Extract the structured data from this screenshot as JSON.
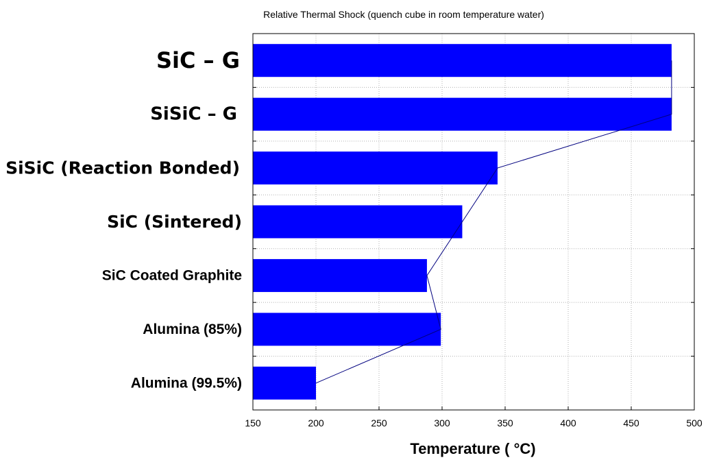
{
  "chart_data": {
    "type": "bar",
    "orientation": "horizontal",
    "title": "Relative Thermal Shock (quench cube in room temperature water)",
    "xlabel": "Temperature ( °C)",
    "ylabel": "",
    "xlim": [
      150,
      500
    ],
    "xticks": [
      150,
      200,
      250,
      300,
      350,
      400,
      450,
      500
    ],
    "grid": true,
    "bar_color": "#0000ff",
    "line_color": "#00007f",
    "categories": [
      "SiC – G",
      "SiSiC – G",
      "SiSiC (Reaction Bonded)",
      "SiC (Sintered)",
      "SiC Coated Graphite",
      "Alumina (85%)",
      "Alumina (99.5%)"
    ],
    "values": [
      482,
      482,
      344,
      316,
      288,
      299,
      200
    ]
  }
}
